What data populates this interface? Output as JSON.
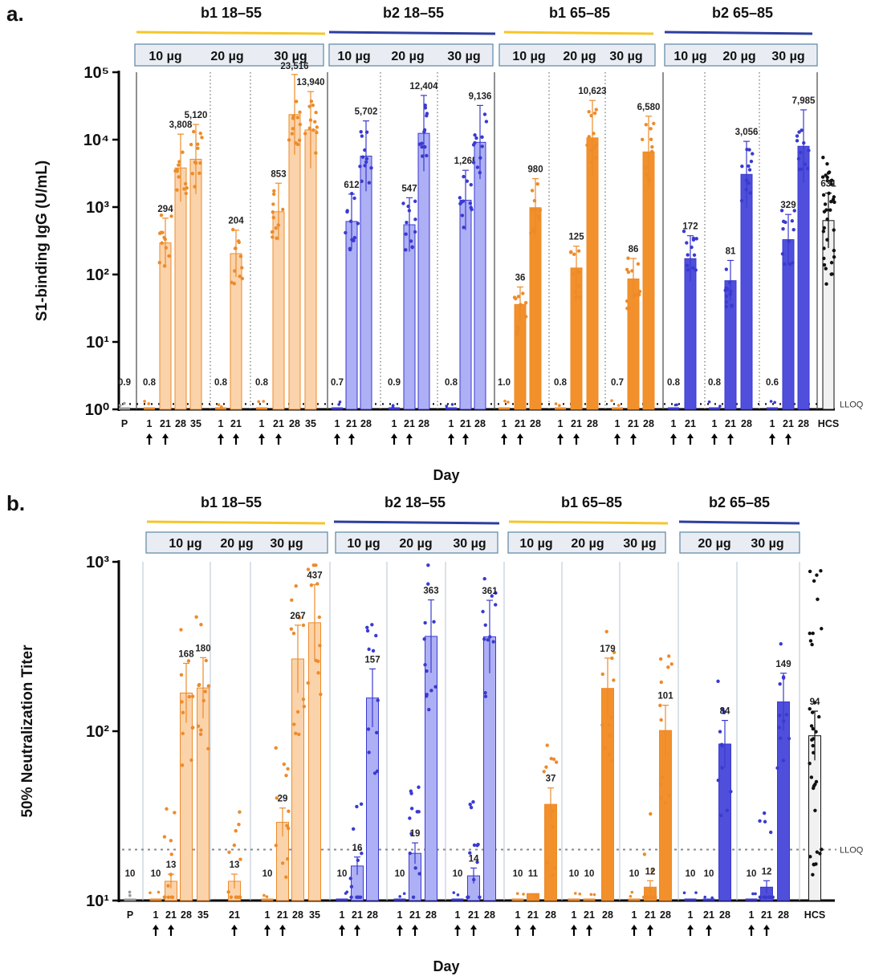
{
  "panels": [
    {
      "label": "a.",
      "ylabel": "S1-binding IgG (U/mL)",
      "xlabel": "Day",
      "yticks": [
        "10⁰",
        "10¹",
        "10²",
        "10³",
        "10⁴",
        "10⁵"
      ],
      "lloq_label": "LLOQ",
      "hcs_label": "HCS",
      "colors": {
        "b1": "#f2902b",
        "b2": "#3b3cc6",
        "b1_light": "#fbd3ab",
        "b2_light": "#aeb0f5",
        "b1_dark": "#ed8b2b",
        "b2_dark": "#3a3ad0",
        "group_b1": "#f5c62a",
        "group_b2": "#2e3d9e"
      },
      "groups": [
        {
          "name": "b1 18–55",
          "family": "b1",
          "doses": [
            "10 µg",
            "20 µg",
            "30 µg"
          ]
        },
        {
          "name": "b2 18–55",
          "family": "b2",
          "doses": [
            "10 µg",
            "20 µg",
            "30 µg"
          ]
        },
        {
          "name": "b1 65–85",
          "family": "b1",
          "doses": [
            "10 µg",
            "20 µg",
            "30 µg"
          ]
        },
        {
          "name": "b2 65–85",
          "family": "b2",
          "doses": [
            "10 µg",
            "20 µg",
            "30 µg"
          ]
        }
      ]
    },
    {
      "label": "b.",
      "ylabel": "50% Neutralization Titer",
      "xlabel": "Day",
      "yticks": [
        "10¹",
        "10²",
        "10³"
      ],
      "lloq_label": "LLOQ",
      "hcs_label": "HCS",
      "groups": [
        {
          "name": "b1 18–55",
          "family": "b1",
          "doses": [
            "10 µg",
            "20 µg",
            "30 µg"
          ]
        },
        {
          "name": "b2 18–55",
          "family": "b2",
          "doses": [
            "10 µg",
            "20 µg",
            "30 µg"
          ]
        },
        {
          "name": "b1 65–85",
          "family": "b1",
          "doses": [
            "10 µg",
            "20 µg",
            "30 µg"
          ]
        },
        {
          "name": "b2 65–85",
          "family": "b2",
          "doses": [
            "20 µg",
            "30 µg"
          ]
        }
      ]
    }
  ],
  "chart_data": [
    {
      "type": "bar",
      "title": "",
      "ylabel": "S1-binding IgG (U/mL)",
      "xlabel": "Day",
      "yscale": "log",
      "ylim": [
        1,
        100000
      ],
      "lloq": 1.2,
      "categories": [
        "P",
        "1",
        "21",
        "28",
        "35",
        "1",
        "21",
        "1",
        "21",
        "28",
        "35",
        "1",
        "21",
        "28",
        "1",
        "21",
        "28",
        "1",
        "21",
        "28",
        "1",
        "21",
        "28",
        "1",
        "21",
        "28",
        "1",
        "21",
        "28",
        "1",
        "21",
        "1",
        "21",
        "28",
        "1",
        "21",
        "28",
        "HCS"
      ],
      "values": [
        0.9,
        0.8,
        294,
        3808,
        5120,
        0.8,
        204,
        0.8,
        853,
        23516,
        13940,
        0.7,
        612,
        5702,
        0.9,
        547,
        12404,
        0.8,
        1265,
        9136,
        1.0,
        36,
        980,
        0.8,
        125,
        10623,
        0.7,
        86,
        6580,
        0.8,
        172,
        0.8,
        81,
        3056,
        0.6,
        329,
        7985,
        631
      ],
      "labels": [
        "0.9",
        "0.8",
        "294",
        "3,808",
        "5,120",
        "0.8",
        "204",
        "0.8",
        "853",
        "23,516",
        "13,940",
        "0.7",
        "612",
        "5,702",
        "0.9",
        "547",
        "12,404",
        "0.8",
        "1,265",
        "9,136",
        "1.0",
        "36",
        "980",
        "0.8",
        "125",
        "10,623",
        "0.7",
        "86",
        "6,580",
        "0.8",
        "172",
        "0.8",
        "81",
        "3,056",
        "0.6",
        "329",
        "7,985",
        "631"
      ],
      "group_of": [
        "P",
        "b1",
        "b1",
        "b1",
        "b1",
        "b1",
        "b1",
        "b1",
        "b1",
        "b1",
        "b1",
        "b2",
        "b2",
        "b2",
        "b2",
        "b2",
        "b2",
        "b2",
        "b2",
        "b2",
        "b1",
        "b1",
        "b1",
        "b1",
        "b1",
        "b1",
        "b1",
        "b1",
        "b1",
        "b2",
        "b2",
        "b2",
        "b2",
        "b2",
        "b2",
        "b2",
        "b2",
        "HCS"
      ],
      "dose_days": "arrows under days 1 and 21 in each dose block"
    },
    {
      "type": "bar",
      "title": "",
      "ylabel": "50% Neutralization Titer",
      "xlabel": "Day",
      "yscale": "log",
      "ylim": [
        10,
        1000
      ],
      "lloq": 20,
      "categories": [
        "P",
        "1",
        "21",
        "28",
        "35",
        "21",
        "1",
        "21",
        "28",
        "35",
        "1",
        "21",
        "28",
        "1",
        "21",
        "28",
        "1",
        "21",
        "28",
        "1",
        "21",
        "28",
        "1",
        "21",
        "28",
        "1",
        "21",
        "28",
        "1",
        "21",
        "28",
        "1",
        "21",
        "28",
        "HCS"
      ],
      "values": [
        10,
        10,
        13,
        168,
        180,
        13,
        10,
        29,
        267,
        437,
        10,
        16,
        157,
        10,
        19,
        363,
        10,
        14,
        361,
        10,
        11,
        37,
        10,
        10,
        179,
        10,
        12,
        101,
        10,
        10,
        84,
        10,
        12,
        149,
        94
      ],
      "labels": [
        "10",
        "10",
        "13",
        "168",
        "180",
        "13",
        "10",
        "29",
        "267",
        "437",
        "10",
        "16",
        "157",
        "10",
        "19",
        "363",
        "10",
        "14",
        "361",
        "10",
        "11",
        "37",
        "10",
        "10",
        "179",
        "10",
        "12",
        "101",
        "10",
        "10",
        "84",
        "10",
        "12",
        "149",
        "94"
      ],
      "group_of": [
        "P",
        "b1",
        "b1",
        "b1",
        "b1",
        "b1",
        "b1",
        "b1",
        "b1",
        "b1",
        "b2",
        "b2",
        "b2",
        "b2",
        "b2",
        "b2",
        "b2",
        "b2",
        "b2",
        "b1",
        "b1",
        "b1",
        "b1",
        "b1",
        "b1",
        "b1",
        "b1",
        "b1",
        "b2",
        "b2",
        "b2",
        "b2",
        "b2",
        "b2",
        "HCS"
      ],
      "dose_days": "arrows under days 1 and 21 in each dose block"
    }
  ]
}
